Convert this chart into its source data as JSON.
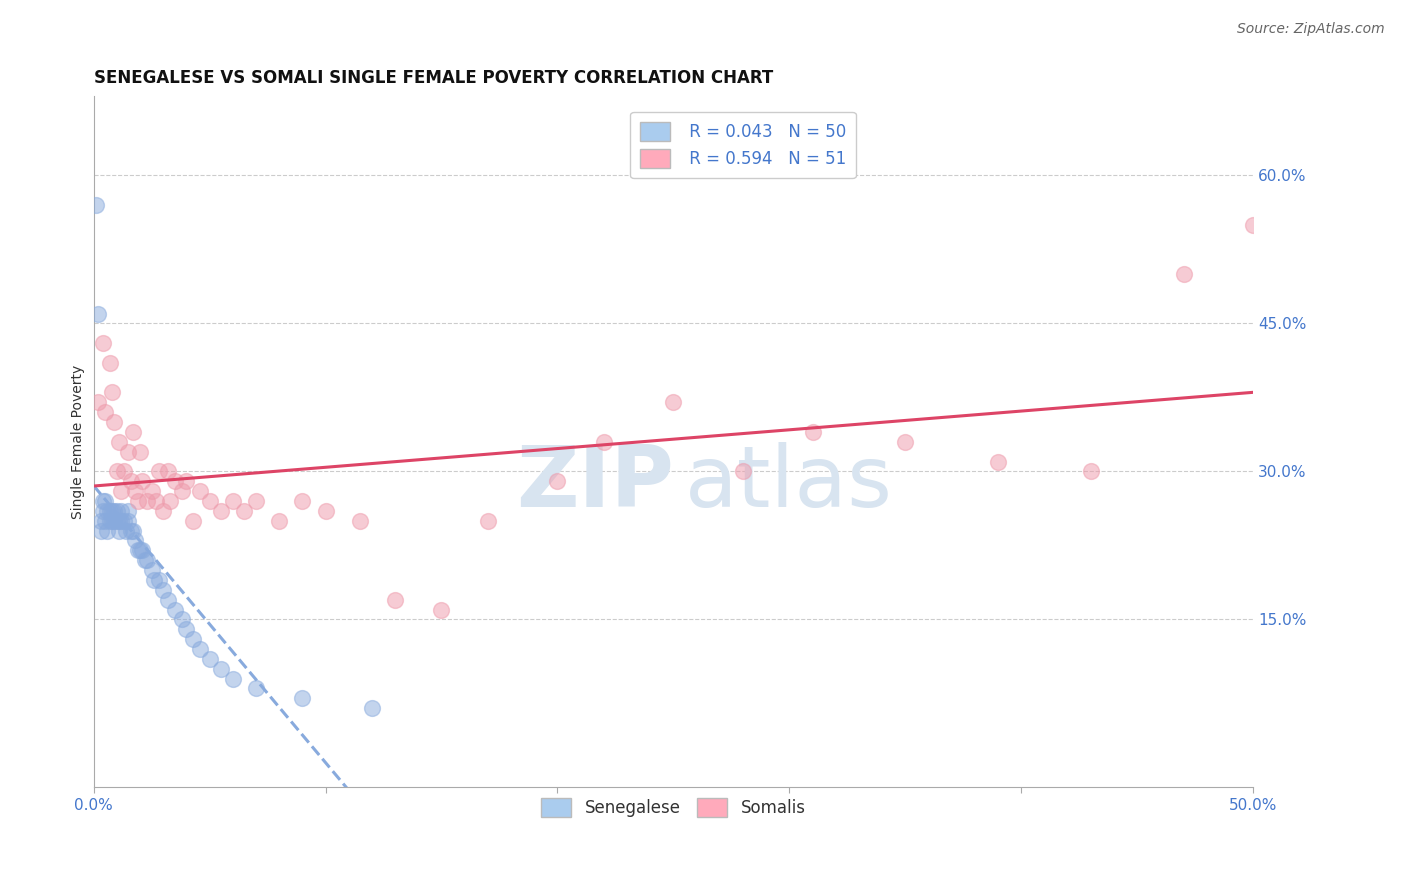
{
  "title": "SENEGALESE VS SOMALI SINGLE FEMALE POVERTY CORRELATION CHART",
  "source_text": "Source: ZipAtlas.com",
  "ylabel": "Single Female Poverty",
  "xlim": [
    0.0,
    0.5
  ],
  "ylim": [
    -0.02,
    0.68
  ],
  "ytick_positions": [
    0.15,
    0.3,
    0.45,
    0.6
  ],
  "ytick_labels": [
    "15.0%",
    "30.0%",
    "45.0%",
    "60.0%"
  ],
  "grid_color": "#cccccc",
  "background_color": "#ffffff",
  "watermark_zip": "ZIP",
  "watermark_atlas": "atlas",
  "senegalese": {
    "name": "Senegalese",
    "R": 0.043,
    "N": 50,
    "scatter_color": "#88aadd",
    "line_color": "#88aadd",
    "line_style": "--",
    "x": [
      0.001,
      0.002,
      0.003,
      0.003,
      0.004,
      0.004,
      0.005,
      0.005,
      0.006,
      0.006,
      0.007,
      0.007,
      0.008,
      0.008,
      0.009,
      0.009,
      0.01,
      0.01,
      0.011,
      0.011,
      0.012,
      0.012,
      0.013,
      0.014,
      0.015,
      0.015,
      0.016,
      0.017,
      0.018,
      0.019,
      0.02,
      0.021,
      0.022,
      0.023,
      0.025,
      0.026,
      0.028,
      0.03,
      0.032,
      0.035,
      0.038,
      0.04,
      0.043,
      0.046,
      0.05,
      0.055,
      0.06,
      0.07,
      0.09,
      0.12
    ],
    "y": [
      0.57,
      0.46,
      0.24,
      0.25,
      0.27,
      0.26,
      0.25,
      0.27,
      0.26,
      0.24,
      0.26,
      0.25,
      0.25,
      0.26,
      0.25,
      0.26,
      0.25,
      0.26,
      0.24,
      0.25,
      0.25,
      0.26,
      0.25,
      0.24,
      0.26,
      0.25,
      0.24,
      0.24,
      0.23,
      0.22,
      0.22,
      0.22,
      0.21,
      0.21,
      0.2,
      0.19,
      0.19,
      0.18,
      0.17,
      0.16,
      0.15,
      0.14,
      0.13,
      0.12,
      0.11,
      0.1,
      0.09,
      0.08,
      0.07,
      0.06
    ]
  },
  "somalis": {
    "name": "Somalis",
    "R": 0.594,
    "N": 51,
    "scatter_color": "#ee99aa",
    "line_color": "#dd4466",
    "line_style": "-",
    "x": [
      0.002,
      0.004,
      0.005,
      0.007,
      0.008,
      0.009,
      0.01,
      0.011,
      0.012,
      0.013,
      0.015,
      0.016,
      0.017,
      0.018,
      0.019,
      0.02,
      0.021,
      0.023,
      0.025,
      0.027,
      0.028,
      0.03,
      0.032,
      0.033,
      0.035,
      0.038,
      0.04,
      0.043,
      0.046,
      0.05,
      0.055,
      0.06,
      0.065,
      0.07,
      0.08,
      0.09,
      0.1,
      0.115,
      0.13,
      0.15,
      0.17,
      0.2,
      0.22,
      0.25,
      0.28,
      0.31,
      0.35,
      0.39,
      0.43,
      0.47,
      0.5
    ],
    "y": [
      0.37,
      0.43,
      0.36,
      0.41,
      0.38,
      0.35,
      0.3,
      0.33,
      0.28,
      0.3,
      0.32,
      0.29,
      0.34,
      0.28,
      0.27,
      0.32,
      0.29,
      0.27,
      0.28,
      0.27,
      0.3,
      0.26,
      0.3,
      0.27,
      0.29,
      0.28,
      0.29,
      0.25,
      0.28,
      0.27,
      0.26,
      0.27,
      0.26,
      0.27,
      0.25,
      0.27,
      0.26,
      0.25,
      0.17,
      0.16,
      0.25,
      0.29,
      0.33,
      0.37,
      0.3,
      0.34,
      0.33,
      0.31,
      0.3,
      0.5,
      0.55
    ]
  },
  "legend_color": "#4477cc",
  "N_color": "#cc2200",
  "title_fontsize": 12,
  "axis_label_fontsize": 10,
  "tick_fontsize": 11,
  "source_fontsize": 10,
  "legend_fontsize": 12
}
